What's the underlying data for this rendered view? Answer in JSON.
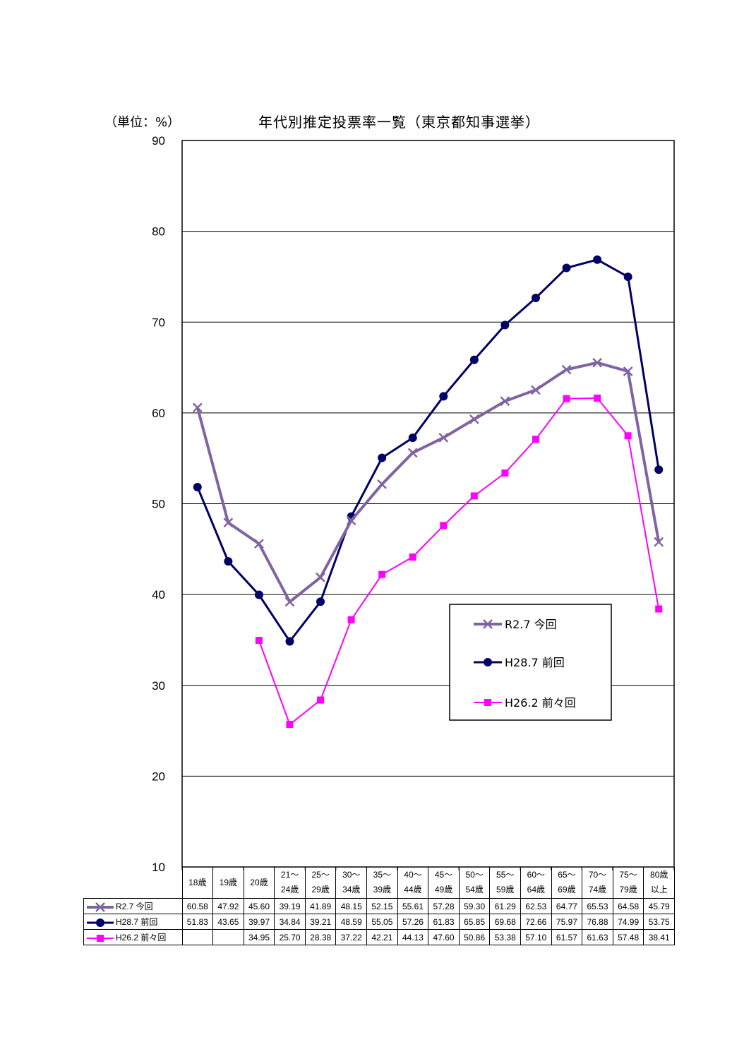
{
  "unit_label": "（単位：%）",
  "chart_data": {
    "type": "line",
    "title": "年代別推定投票率一覧（東京都知事選挙）",
    "xlabel": "",
    "ylabel": "",
    "ylim": [
      10,
      90
    ],
    "yticks": [
      10,
      20,
      30,
      40,
      50,
      60,
      70,
      80,
      90
    ],
    "grid": true,
    "legend_position": "right-middle",
    "categories": [
      [
        "18歳"
      ],
      [
        "19歳"
      ],
      [
        "20歳"
      ],
      [
        "21～",
        "24歳"
      ],
      [
        "25～",
        "29歳"
      ],
      [
        "30～",
        "34歳"
      ],
      [
        "35～",
        "39歳"
      ],
      [
        "40～",
        "44歳"
      ],
      [
        "45～",
        "49歳"
      ],
      [
        "50～",
        "54歳"
      ],
      [
        "55～",
        "59歳"
      ],
      [
        "60～",
        "64歳"
      ],
      [
        "65～",
        "69歳"
      ],
      [
        "70～",
        "74歳"
      ],
      [
        "75～",
        "79歳"
      ],
      [
        "80歳",
        "以上"
      ]
    ],
    "series": [
      {
        "name": "R2.7 今回",
        "color": "#8064a2",
        "marker": "x",
        "values": [
          60.58,
          47.92,
          45.6,
          39.19,
          41.89,
          48.15,
          52.15,
          55.61,
          57.28,
          59.3,
          61.29,
          62.53,
          64.77,
          65.53,
          64.58,
          45.79
        ],
        "labels": [
          "60.58",
          "47.92",
          "45.60",
          "39.19",
          "41.89",
          "48.15",
          "52.15",
          "55.61",
          "57.28",
          "59.30",
          "61.29",
          "62.53",
          "64.77",
          "65.53",
          "64.58",
          "45.79"
        ]
      },
      {
        "name": "H28.7 前回",
        "color": "#000066",
        "marker": "circle",
        "values": [
          51.83,
          43.65,
          39.97,
          34.84,
          39.21,
          48.59,
          55.05,
          57.26,
          61.83,
          65.85,
          69.68,
          72.66,
          75.97,
          76.88,
          74.99,
          53.75
        ],
        "labels": [
          "51.83",
          "43.65",
          "39.97",
          "34.84",
          "39.21",
          "48.59",
          "55.05",
          "57.26",
          "61.83",
          "65.85",
          "69.68",
          "72.66",
          "75.97",
          "76.88",
          "74.99",
          "53.75"
        ]
      },
      {
        "name": "H26.2 前々回",
        "color": "#ff00ff",
        "marker": "square",
        "values": [
          null,
          null,
          34.95,
          25.7,
          28.38,
          37.22,
          42.21,
          44.13,
          47.6,
          50.86,
          53.38,
          57.1,
          61.57,
          61.63,
          57.48,
          38.41
        ],
        "labels": [
          "",
          "",
          "34.95",
          "25.70",
          "28.38",
          "37.22",
          "42.21",
          "44.13",
          "47.60",
          "50.86",
          "53.38",
          "57.10",
          "61.57",
          "61.63",
          "57.48",
          "38.41"
        ]
      }
    ]
  }
}
